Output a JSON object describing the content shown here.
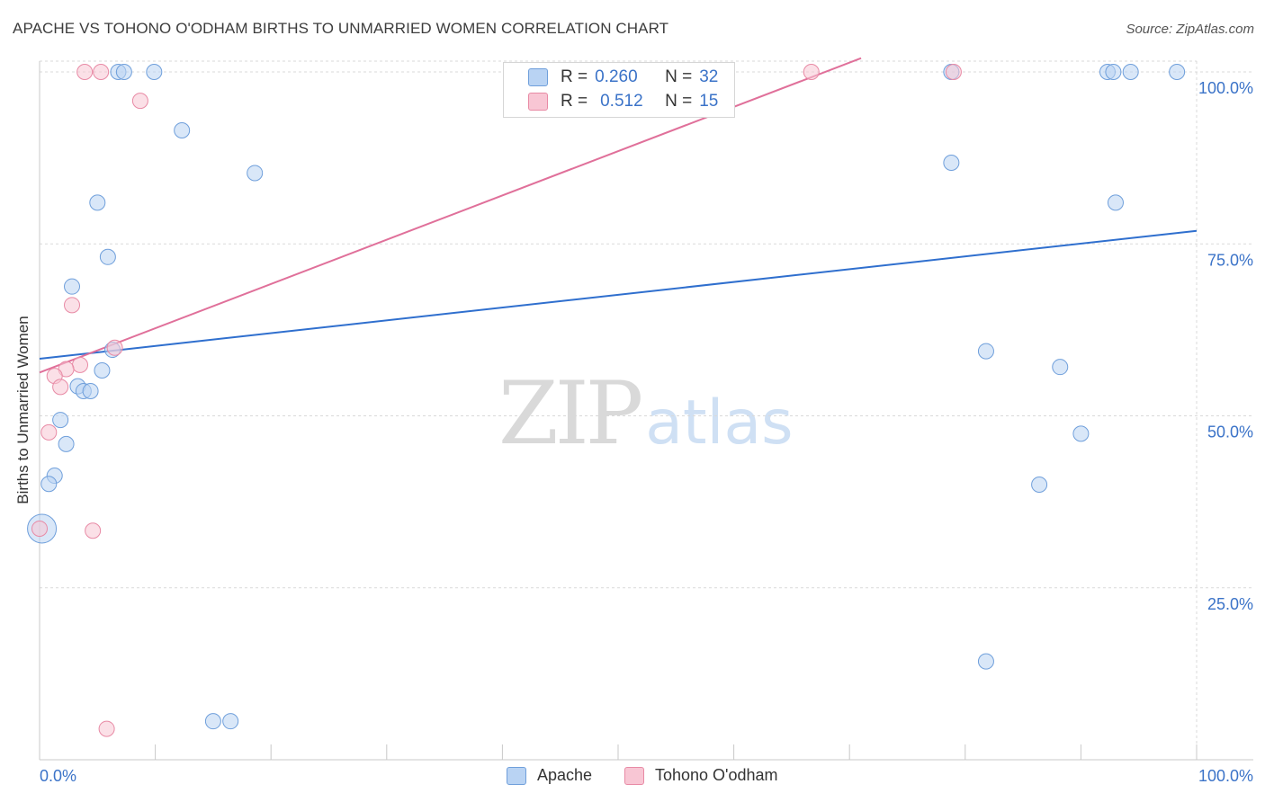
{
  "header": {
    "title": "APACHE VS TOHONO O'ODHAM BIRTHS TO UNMARRIED WOMEN CORRELATION CHART",
    "source": "Source: ZipAtlas.com"
  },
  "watermark": {
    "zip": "ZIP",
    "atlas": "atlas"
  },
  "legend": {
    "r_label": "R =",
    "n_label": "N =",
    "apache": {
      "r": "0.260",
      "n": "32"
    },
    "tohono": {
      "r": "0.512",
      "n": "15"
    }
  },
  "bottom_legend": {
    "apache": "Apache",
    "tohono": "Tohono O'odham"
  },
  "colors": {
    "apache_fill": "#b9d3f3",
    "apache_stroke": "#6f9fdb",
    "apache_line": "#2f6fce",
    "tohono_fill": "#f8c6d4",
    "tohono_stroke": "#e88aa5",
    "tohono_line": "#e0709a",
    "axis_text": "#3b73c8",
    "grid": "#d9d9d9"
  },
  "chart_data": {
    "type": "scatter",
    "title": "APACHE VS TOHONO O'ODHAM BIRTHS TO UNMARRIED WOMEN CORRELATION CHART",
    "xlabel": "",
    "ylabel": "Births to Unmarried Women",
    "xlim": [
      0,
      100
    ],
    "ylim": [
      0,
      102
    ],
    "x_tick_labels": [
      "0.0%",
      "100.0%"
    ],
    "y_ticks": [
      25,
      50,
      75,
      100
    ],
    "y_tick_labels": [
      "25.0%",
      "50.0%",
      "75.0%",
      "100.0%"
    ],
    "grid": true,
    "series": [
      {
        "name": "Apache",
        "r": 0.26,
        "n": 32,
        "points": [
          {
            "x": 6.8,
            "y": 100
          },
          {
            "x": 7.3,
            "y": 100
          },
          {
            "x": 9.9,
            "y": 100
          },
          {
            "x": 12.3,
            "y": 91.5
          },
          {
            "x": 18.6,
            "y": 85.3
          },
          {
            "x": 5.0,
            "y": 81.0
          },
          {
            "x": 5.9,
            "y": 73.1
          },
          {
            "x": 2.8,
            "y": 68.8
          },
          {
            "x": 6.3,
            "y": 59.6
          },
          {
            "x": 5.4,
            "y": 56.6
          },
          {
            "x": 3.3,
            "y": 54.3
          },
          {
            "x": 3.8,
            "y": 53.6
          },
          {
            "x": 4.4,
            "y": 53.6
          },
          {
            "x": 1.8,
            "y": 49.4
          },
          {
            "x": 2.3,
            "y": 45.9
          },
          {
            "x": 1.3,
            "y": 41.3
          },
          {
            "x": 0.8,
            "y": 40.1
          },
          {
            "x": 0.2,
            "y": 33.6
          },
          {
            "x": 15.0,
            "y": 5.6
          },
          {
            "x": 16.5,
            "y": 5.6
          },
          {
            "x": 78.8,
            "y": 100
          },
          {
            "x": 92.3,
            "y": 100
          },
          {
            "x": 92.8,
            "y": 100
          },
          {
            "x": 94.3,
            "y": 100
          },
          {
            "x": 98.3,
            "y": 100
          },
          {
            "x": 78.8,
            "y": 86.8
          },
          {
            "x": 93.0,
            "y": 81.0
          },
          {
            "x": 81.8,
            "y": 59.4
          },
          {
            "x": 88.2,
            "y": 57.1
          },
          {
            "x": 90.0,
            "y": 47.4
          },
          {
            "x": 86.4,
            "y": 40.0
          },
          {
            "x": 81.8,
            "y": 14.3
          }
        ],
        "trend": {
          "x0": 0,
          "y0": 58.3,
          "x1": 100,
          "y1": 76.9
        }
      },
      {
        "name": "Tohono O'odham",
        "r": 0.512,
        "n": 15,
        "points": [
          {
            "x": 3.9,
            "y": 100
          },
          {
            "x": 5.3,
            "y": 100
          },
          {
            "x": 8.7,
            "y": 95.8
          },
          {
            "x": 66.7,
            "y": 100
          },
          {
            "x": 79.0,
            "y": 100
          },
          {
            "x": 2.8,
            "y": 66.1
          },
          {
            "x": 6.5,
            "y": 59.9
          },
          {
            "x": 3.5,
            "y": 57.4
          },
          {
            "x": 2.3,
            "y": 56.8
          },
          {
            "x": 1.3,
            "y": 55.8
          },
          {
            "x": 1.8,
            "y": 54.2
          },
          {
            "x": 0.8,
            "y": 47.6
          },
          {
            "x": 0.0,
            "y": 33.6
          },
          {
            "x": 4.6,
            "y": 33.3
          },
          {
            "x": 5.8,
            "y": 4.5
          }
        ],
        "trend": {
          "x0": 0,
          "y0": 56.3,
          "x1": 71.0,
          "y1": 102
        }
      }
    ]
  }
}
